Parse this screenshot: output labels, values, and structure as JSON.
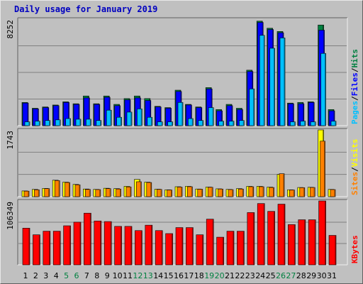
{
  "title": "Daily usage for January 2019",
  "colors": {
    "background": "#c0c0c0",
    "panel": "#c0c0c0",
    "grid": "#808080",
    "hits": "#008040",
    "files": "#0000ff",
    "pages": "#00c0ff",
    "visits": "#ffff00",
    "sites": "#ff8000",
    "kbytes": "#ff0000",
    "title": "#0000c0",
    "weekend_label": "#008040",
    "weekday_label": "#000000"
  },
  "chart_data": [
    {
      "type": "bar",
      "panel": "top",
      "max_label": "8252",
      "ymax": 8252,
      "categories": [
        "1",
        "2",
        "3",
        "4",
        "5",
        "6",
        "7",
        "8",
        "9",
        "10",
        "11",
        "12",
        "13",
        "14",
        "15",
        "16",
        "17",
        "18",
        "19",
        "20",
        "21",
        "22",
        "23",
        "24",
        "25",
        "26",
        "27",
        "28",
        "29",
        "30",
        "31"
      ],
      "weekend_days": [
        "5",
        "6",
        "12",
        "13",
        "19",
        "20",
        "26",
        "27"
      ],
      "legend": [
        {
          "name": "Pages",
          "color": "#00c0ff"
        },
        {
          "name": "/",
          "color": "#000000"
        },
        {
          "name": "Files",
          "color": "#0000ff"
        },
        {
          "name": "/",
          "color": "#000000"
        },
        {
          "name": "Hits",
          "color": "#008040"
        }
      ],
      "series": [
        {
          "name": "Hits",
          "color": "#008040",
          "values": [
            1800,
            1350,
            1450,
            1600,
            1850,
            1700,
            2300,
            1700,
            2300,
            1650,
            2100,
            2300,
            2100,
            1500,
            1400,
            2750,
            1650,
            1450,
            2950,
            1250,
            1650,
            1350,
            4300,
            8100,
            7550,
            7300,
            1750,
            1800,
            1850,
            7800,
            1250
          ]
        },
        {
          "name": "Files",
          "color": "#0000ff",
          "values": [
            1750,
            1300,
            1400,
            1550,
            1800,
            1650,
            2150,
            1650,
            2200,
            1550,
            2000,
            2150,
            1950,
            1450,
            1350,
            2650,
            1600,
            1400,
            2850,
            1150,
            1550,
            1250,
            4200,
            8000,
            7450,
            7200,
            1700,
            1700,
            1800,
            7400,
            1150
          ]
        },
        {
          "name": "Pages",
          "color": "#00c0ff",
          "values": [
            300,
            350,
            400,
            450,
            550,
            500,
            500,
            400,
            1200,
            650,
            1050,
            1300,
            650,
            300,
            300,
            1800,
            550,
            400,
            1400,
            350,
            350,
            400,
            2850,
            7000,
            6000,
            6800,
            300,
            350,
            300,
            5600,
            350
          ]
        }
      ]
    },
    {
      "type": "bar",
      "panel": "middle",
      "max_label": "1743",
      "ymax": 1743,
      "categories": [
        "1",
        "2",
        "3",
        "4",
        "5",
        "6",
        "7",
        "8",
        "9",
        "10",
        "11",
        "12",
        "13",
        "14",
        "15",
        "16",
        "17",
        "18",
        "19",
        "20",
        "21",
        "22",
        "23",
        "24",
        "25",
        "26",
        "27",
        "28",
        "29",
        "30",
        "31"
      ],
      "legend": [
        {
          "name": "Sites",
          "color": "#ff8000"
        },
        {
          "name": "/",
          "color": "#000000"
        },
        {
          "name": "Visits",
          "color": "#ffff00"
        }
      ],
      "series": [
        {
          "name": "Visits",
          "color": "#ffff00",
          "values": [
            150,
            190,
            215,
            430,
            380,
            320,
            200,
            190,
            220,
            210,
            270,
            450,
            380,
            195,
            180,
            260,
            270,
            200,
            250,
            205,
            190,
            210,
            270,
            270,
            250,
            580,
            180,
            240,
            245,
            1743,
            190
          ]
        },
        {
          "name": "Sites",
          "color": "#ff8000",
          "values": [
            145,
            180,
            210,
            420,
            370,
            310,
            190,
            185,
            210,
            200,
            255,
            390,
            370,
            190,
            175,
            250,
            260,
            195,
            245,
            200,
            185,
            200,
            260,
            260,
            240,
            600,
            175,
            235,
            240,
            1450,
            185
          ]
        }
      ]
    },
    {
      "type": "bar",
      "panel": "bottom",
      "max_label": "106349",
      "ymax": 106349,
      "categories": [
        "1",
        "2",
        "3",
        "4",
        "5",
        "6",
        "7",
        "8",
        "9",
        "10",
        "11",
        "12",
        "13",
        "14",
        "15",
        "16",
        "17",
        "18",
        "19",
        "20",
        "21",
        "22",
        "23",
        "24",
        "25",
        "26",
        "27",
        "28",
        "29",
        "30",
        "31"
      ],
      "legend": [
        {
          "name": "KBytes",
          "color": "#ff0000"
        }
      ],
      "series": [
        {
          "name": "KBytes",
          "color": "#ff0000",
          "values": [
            61000,
            50000,
            56000,
            56000,
            65000,
            71000,
            86000,
            73000,
            72000,
            64000,
            64000,
            57000,
            66000,
            57000,
            52000,
            62000,
            62000,
            50000,
            76000,
            46000,
            56000,
            56000,
            87000,
            102000,
            89000,
            101000,
            67000,
            75000,
            75000,
            106349,
            49000
          ]
        }
      ]
    }
  ]
}
